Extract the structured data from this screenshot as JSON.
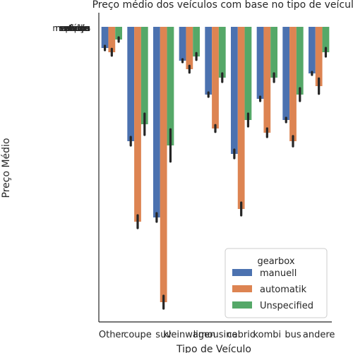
{
  "chart_data": {
    "type": "bar",
    "title": "Preço médio dos veículos com base no tipo de veículo",
    "xlabel": "Tipo de Veículo",
    "ylabel": "Preço Médio",
    "categories": [
      "Other",
      "coupe",
      "suv",
      "kleinwagen",
      "limousine",
      "cabrio",
      "kombi",
      "bus",
      "andere"
    ],
    "series": [
      {
        "name": "manuell",
        "color": "#4c72b0",
        "values": [
          5000,
          27000,
          45000,
          8000,
          16000,
          30000,
          17000,
          22000,
          11000
        ]
      },
      {
        "name": "automatik",
        "color": "#dd8452",
        "values": [
          6000,
          46000,
          65000,
          10000,
          24000,
          43000,
          25000,
          27000,
          14000
        ]
      },
      {
        "name": "Unspecified",
        "color": "#55a868",
        "values": [
          3000,
          23000,
          28000,
          7000,
          12000,
          22000,
          12000,
          16000,
          6000
        ]
      }
    ],
    "errors": [
      [
        500,
        1000,
        1000,
        0,
        500,
        1000,
        500,
        500,
        0
      ],
      [
        800,
        1500,
        1500,
        800,
        800,
        1500,
        1000,
        1200,
        1800
      ],
      [
        500,
        2500,
        3800,
        800,
        1000,
        1500,
        1000,
        1500,
        1000
      ]
    ],
    "ylim": [
      0,
      68000
    ],
    "y_inverted": true,
    "ytick_labels": [
      "nenhum",
      "serviço",
      "vendas",
      "usados",
      "veículo",
      "preço",
      "médio",
      "mercado",
      "tipos",
      "valores",
      "faixa"
    ],
    "legend": {
      "title": "gearbox",
      "position": "bottom-right"
    },
    "grid": false
  }
}
